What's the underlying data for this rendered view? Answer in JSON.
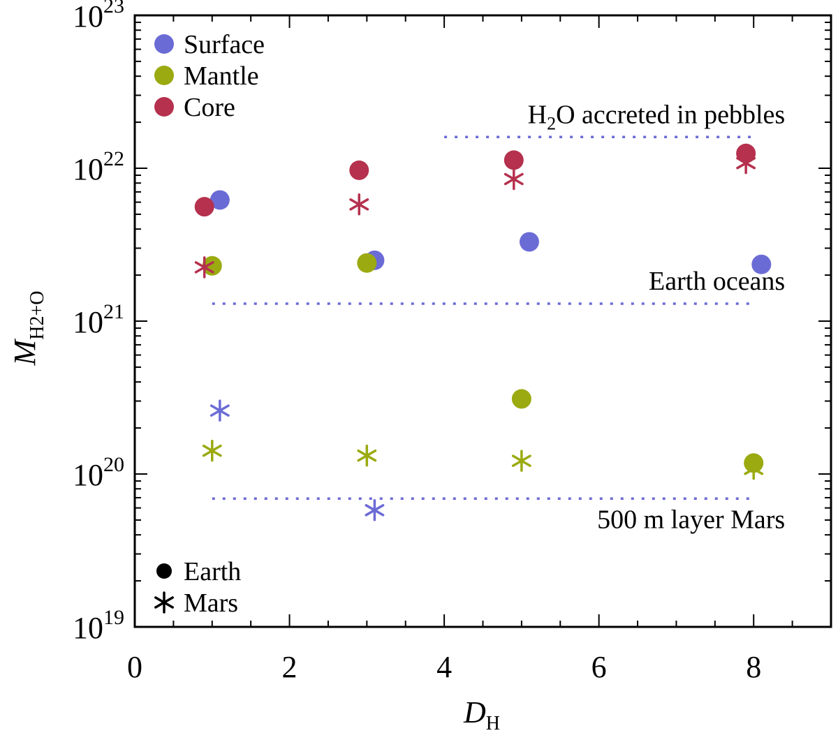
{
  "chart_data": {
    "type": "scatter",
    "title": "",
    "xlabel": {
      "main": "D",
      "sub": "H"
    },
    "ylabel": {
      "main": "M",
      "sub": "H2+O"
    },
    "xlim": [
      0,
      9
    ],
    "ylim": [
      1e+19,
      1e+23
    ],
    "yscale": "log",
    "x_ticks": [
      {
        "value": 0,
        "label": "0"
      },
      {
        "value": 2,
        "label": "2"
      },
      {
        "value": 4,
        "label": "4"
      },
      {
        "value": 6,
        "label": "6"
      },
      {
        "value": 8,
        "label": "8"
      }
    ],
    "y_ticks": [
      {
        "value": 1e+19,
        "base": "10",
        "exp": "19"
      },
      {
        "value": 1e+20,
        "base": "10",
        "exp": "20"
      },
      {
        "value": 1e+21,
        "base": "10",
        "exp": "21"
      },
      {
        "value": 1e+22,
        "base": "10",
        "exp": "22"
      },
      {
        "value": 1e+23,
        "base": "10",
        "exp": "23"
      }
    ],
    "series": [
      {
        "name": "Surface",
        "color": "#6b6bd6",
        "earth": [
          [
            1.1,
            6.2e+21
          ],
          [
            3.1,
            2.5e+21
          ],
          [
            5.1,
            3.3e+21
          ],
          [
            8.1,
            2.35e+21
          ]
        ],
        "mars": [
          [
            1.1,
            2.6e+20
          ],
          [
            3.1,
            5.8e+19
          ]
        ]
      },
      {
        "name": "Mantle",
        "color": "#9aaa10",
        "earth": [
          [
            1.0,
            2.3e+21
          ],
          [
            3.0,
            2.4e+21
          ],
          [
            5.0,
            3.1e+20
          ],
          [
            8.0,
            1.18e+20
          ]
        ],
        "mars": [
          [
            1.0,
            1.42e+20
          ],
          [
            3.0,
            1.32e+20
          ],
          [
            5.0,
            1.22e+20
          ],
          [
            8.0,
            1.08e+20
          ]
        ]
      },
      {
        "name": "Core",
        "color": "#b5314e",
        "earth": [
          [
            0.9,
            5.6e+21
          ],
          [
            2.9,
            9.7e+21
          ],
          [
            4.9,
            1.13e+22
          ],
          [
            7.9,
            1.25e+22
          ]
        ],
        "mars": [
          [
            0.9,
            2.25e+21
          ],
          [
            2.9,
            5.8e+21
          ],
          [
            4.9,
            8.5e+21
          ],
          [
            7.9,
            1.08e+22
          ]
        ]
      }
    ],
    "reference_lines": [
      {
        "label_main": "H",
        "label_sub": "2",
        "label_rest": "O accreted in pebbles",
        "y": 1.6e+22,
        "x": [
          4.0,
          8.0
        ],
        "label_pos": "above"
      },
      {
        "label_main": "Earth oceans",
        "label_sub": "",
        "label_rest": "",
        "y": 1.3e+21,
        "x": [
          1.0,
          8.0
        ],
        "label_pos": "above"
      },
      {
        "label_main": "500 m layer Mars",
        "label_sub": "",
        "label_rest": "",
        "y": 6.9e+19,
        "x": [
          1.0,
          8.0
        ],
        "label_pos": "below"
      }
    ],
    "reference_color": "#6b6bd6",
    "legend_series": {
      "placement": "top-left",
      "entries": [
        "Surface",
        "Mantle",
        "Core"
      ]
    },
    "legend_markers": {
      "placement": "bottom-left",
      "entries": [
        {
          "label": "Earth",
          "marker": "circle"
        },
        {
          "label": "Mars",
          "marker": "asterisk"
        }
      ]
    },
    "grid": false
  }
}
